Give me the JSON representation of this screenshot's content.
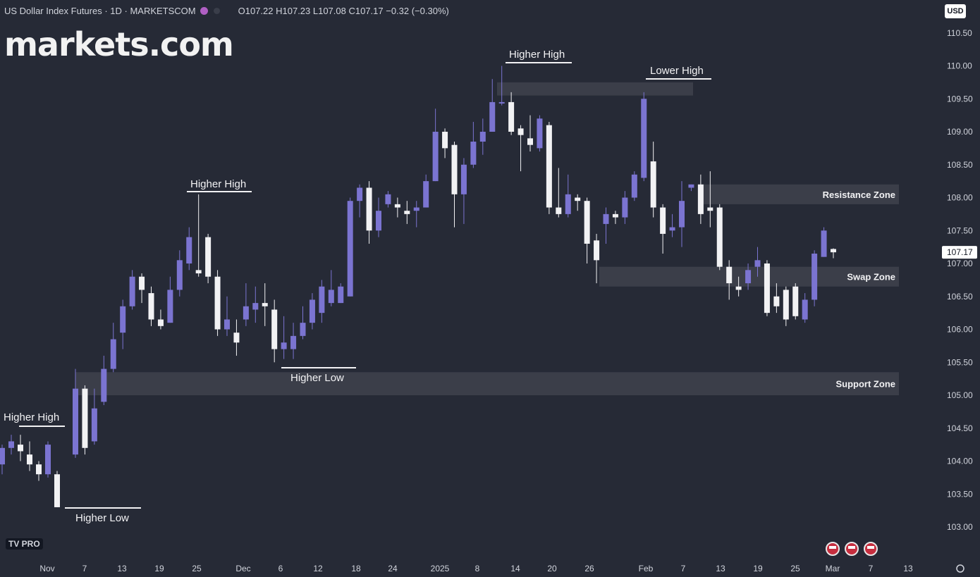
{
  "header": {
    "title": "US Dollar Index Futures · 1D · MARKETSCOM",
    "ohlc": "O107.22 H107.23 L107.08 C107.17 −0.32 (−0.30%)"
  },
  "logo": "markets.com",
  "currency_button": "USD",
  "tv_badge": "TV PRO",
  "settings_icon": "gear-icon",
  "colors": {
    "background": "#262a36",
    "up": "#7b74d1",
    "down": "#f2f2f4",
    "zone": "#3c3f4b",
    "text": "#d1d4dc"
  },
  "chart_data": {
    "type": "candlestick",
    "ylim": [
      102.8,
      110.75
    ],
    "y_ticks": [
      103.0,
      103.5,
      104.0,
      104.5,
      105.0,
      105.5,
      106.0,
      106.5,
      107.0,
      107.5,
      108.0,
      108.5,
      109.0,
      109.5,
      110.0,
      110.5
    ],
    "x_ticks": [
      "Nov",
      "7",
      "13",
      "19",
      "25",
      "Dec",
      "6",
      "12",
      "18",
      "24",
      "2025",
      "8",
      "14",
      "20",
      "26",
      "Feb",
      "7",
      "13",
      "19",
      "25",
      "Mar",
      "7",
      "13"
    ],
    "last_price": "107.17",
    "candles": [
      [
        103.95,
        104.2,
        104.25,
        103.8
      ],
      [
        104.2,
        104.3,
        104.4,
        104.1
      ],
      [
        104.25,
        104.15,
        104.4,
        104.0
      ],
      [
        104.1,
        103.95,
        104.3,
        103.85
      ],
      [
        103.95,
        103.8,
        104.0,
        103.7
      ],
      [
        103.8,
        104.25,
        104.3,
        103.75
      ],
      [
        103.8,
        103.3,
        103.85,
        103.3
      ],
      [
        104.1,
        105.1,
        105.4,
        104.05
      ],
      [
        105.1,
        104.2,
        105.15,
        104.1
      ],
      [
        104.3,
        104.8,
        105.1,
        104.25
      ],
      [
        104.9,
        105.4,
        105.6,
        104.85
      ],
      [
        105.4,
        105.85,
        106.1,
        105.35
      ],
      [
        105.95,
        106.35,
        106.45,
        105.7
      ],
      [
        106.35,
        106.8,
        106.9,
        106.3
      ],
      [
        106.8,
        106.6,
        106.85,
        106.4
      ],
      [
        106.55,
        106.15,
        106.65,
        106.05
      ],
      [
        106.15,
        106.05,
        106.3,
        106.0
      ],
      [
        106.1,
        106.6,
        106.8,
        106.1
      ],
      [
        106.6,
        107.05,
        107.2,
        106.5
      ],
      [
        107.0,
        107.4,
        107.55,
        106.9
      ],
      [
        106.9,
        106.85,
        108.05,
        106.8
      ],
      [
        107.4,
        106.8,
        107.45,
        106.7
      ],
      [
        106.8,
        106.0,
        106.9,
        105.9
      ],
      [
        106.0,
        106.15,
        106.5,
        105.9
      ],
      [
        105.95,
        105.8,
        106.15,
        105.6
      ],
      [
        106.15,
        106.35,
        106.7,
        106.05
      ],
      [
        106.3,
        106.4,
        106.65,
        106.1
      ],
      [
        106.4,
        106.35,
        106.7,
        106.05
      ],
      [
        106.3,
        105.7,
        106.45,
        105.5
      ],
      [
        105.7,
        105.8,
        106.2,
        105.55
      ],
      [
        105.7,
        105.9,
        106.1,
        105.55
      ],
      [
        105.9,
        106.1,
        106.35,
        105.85
      ],
      [
        106.1,
        106.45,
        106.55,
        106.0
      ],
      [
        106.25,
        106.65,
        106.75,
        106.1
      ],
      [
        106.4,
        106.6,
        106.9,
        106.35
      ],
      [
        106.4,
        106.65,
        106.7,
        106.4
      ],
      [
        106.5,
        107.95,
        108.0,
        106.5
      ],
      [
        107.95,
        108.15,
        108.2,
        107.7
      ],
      [
        108.15,
        107.5,
        108.25,
        107.3
      ],
      [
        107.5,
        107.8,
        108.0,
        107.4
      ],
      [
        107.9,
        108.05,
        108.1,
        107.85
      ],
      [
        107.9,
        107.85,
        108.0,
        107.7
      ],
      [
        107.8,
        107.75,
        107.95,
        107.6
      ],
      [
        107.8,
        107.85,
        107.95,
        107.55
      ],
      [
        107.85,
        108.25,
        108.35,
        107.85
      ],
      [
        108.25,
        109.0,
        109.35,
        108.25
      ],
      [
        109.0,
        108.75,
        109.05,
        108.6
      ],
      [
        108.8,
        108.05,
        108.85,
        107.55
      ],
      [
        108.05,
        108.5,
        108.6,
        107.6
      ],
      [
        108.5,
        108.85,
        109.15,
        108.45
      ],
      [
        108.85,
        109.0,
        109.2,
        108.65
      ],
      [
        109.0,
        109.45,
        109.8,
        109.0
      ],
      [
        109.45,
        109.45,
        110.0,
        109.4
      ],
      [
        109.45,
        109.0,
        109.6,
        108.95
      ],
      [
        109.05,
        108.95,
        109.1,
        108.4
      ],
      [
        108.9,
        108.8,
        109.25,
        108.7
      ],
      [
        108.75,
        109.2,
        109.25,
        108.7
      ],
      [
        109.1,
        107.85,
        109.15,
        107.75
      ],
      [
        107.85,
        107.75,
        108.45,
        107.7
      ],
      [
        107.75,
        108.05,
        108.35,
        107.7
      ],
      [
        108.0,
        107.95,
        108.05,
        107.8
      ],
      [
        107.95,
        107.3,
        108.0,
        107.0
      ],
      [
        107.35,
        107.05,
        107.45,
        106.7
      ],
      [
        107.6,
        107.75,
        107.85,
        107.3
      ],
      [
        107.75,
        107.7,
        107.8,
        107.6
      ],
      [
        107.7,
        108.0,
        108.1,
        107.6
      ],
      [
        108.0,
        108.35,
        108.4,
        107.95
      ],
      [
        108.3,
        109.5,
        109.6,
        108.25
      ],
      [
        108.55,
        107.85,
        108.85,
        107.7
      ],
      [
        107.85,
        107.45,
        107.9,
        107.15
      ],
      [
        107.5,
        107.55,
        107.75,
        107.4
      ],
      [
        107.55,
        107.95,
        108.25,
        107.25
      ],
      [
        108.15,
        108.2,
        108.2,
        108.1
      ],
      [
        108.2,
        107.75,
        108.35,
        107.6
      ],
      [
        107.85,
        107.8,
        108.4,
        107.55
      ],
      [
        107.85,
        106.95,
        107.9,
        106.9
      ],
      [
        106.95,
        106.7,
        107.05,
        106.45
      ],
      [
        106.65,
        106.6,
        106.8,
        106.5
      ],
      [
        106.7,
        106.9,
        107.0,
        106.6
      ],
      [
        106.95,
        107.05,
        107.25,
        106.8
      ],
      [
        107.0,
        106.25,
        107.05,
        106.2
      ],
      [
        106.5,
        106.35,
        106.7,
        106.25
      ],
      [
        106.6,
        106.15,
        106.65,
        106.05
      ],
      [
        106.65,
        106.2,
        106.7,
        106.15
      ],
      [
        106.15,
        106.45,
        106.55,
        106.1
      ],
      [
        106.45,
        107.15,
        107.2,
        106.35
      ],
      [
        107.1,
        107.5,
        107.55,
        107.1
      ],
      [
        107.22,
        107.17,
        107.23,
        107.08
      ]
    ],
    "zones": [
      {
        "label": "Resistance Zone",
        "y_top": 108.2,
        "y_bottom": 107.9,
        "from": "Feb 10",
        "to": "end"
      },
      {
        "label": "Swap Zone",
        "y_top": 106.95,
        "y_bottom": 106.65,
        "from": "Jan 28",
        "to": "end"
      },
      {
        "label": "Support Zone",
        "y_top": 105.35,
        "y_bottom": 105.0,
        "from": "Nov 8",
        "to": "end"
      },
      {
        "label": "",
        "y_top": 109.75,
        "y_bottom": 109.55,
        "from": "Jan 13",
        "to": "Feb 7"
      }
    ],
    "annotations": [
      "Higher High",
      "Higher Low",
      "Higher High",
      "Higher Low",
      "Higher High",
      "Lower High"
    ]
  }
}
